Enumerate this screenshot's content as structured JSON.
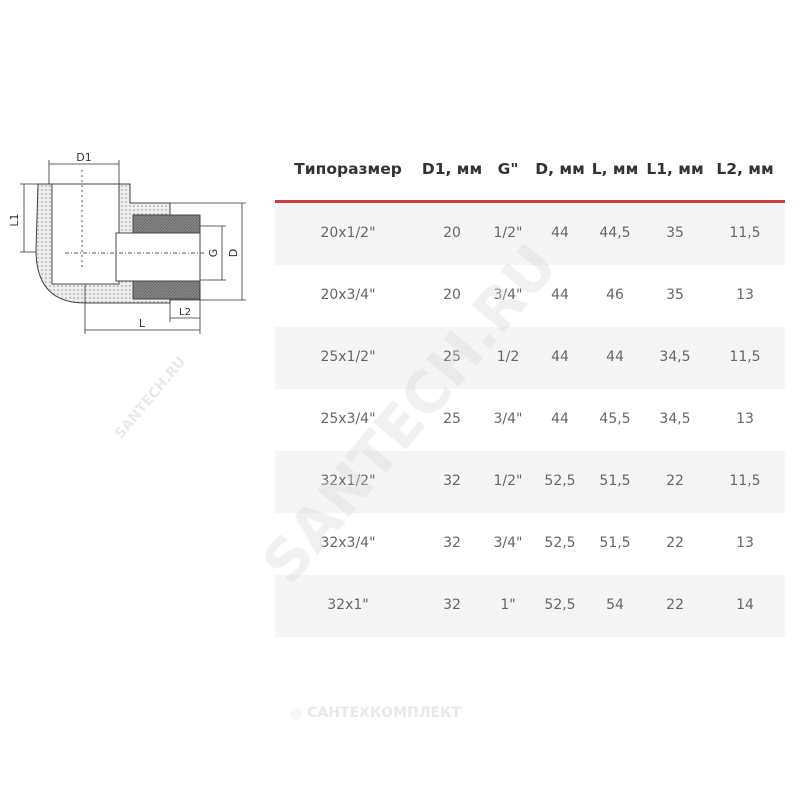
{
  "drawing_labels": {
    "d1": "D1",
    "l1": "L1",
    "g": "G",
    "d": "D",
    "l": "L",
    "l2": "L2"
  },
  "table": {
    "headers": [
      "Типоразмер",
      "D1, мм",
      "G\"",
      "D, мм",
      "L, мм",
      "L1, мм",
      "L2, мм"
    ],
    "rows": [
      [
        "20x1/2\"",
        "20",
        "1/2\"",
        "44",
        "44,5",
        "35",
        "11,5"
      ],
      [
        "20x3/4\"",
        "20",
        "3/4\"",
        "44",
        "46",
        "35",
        "13"
      ],
      [
        "25x1/2\"",
        "25",
        "1/2",
        "44",
        "44",
        "34,5",
        "11,5"
      ],
      [
        "25x3/4\"",
        "25",
        "3/4\"",
        "44",
        "45,5",
        "34,5",
        "13"
      ],
      [
        "32x1/2\"",
        "32",
        "1/2\"",
        "52,5",
        "51,5",
        "22",
        "11,5"
      ],
      [
        "32x3/4\"",
        "32",
        "3/4\"",
        "52,5",
        "51,5",
        "22",
        "13"
      ],
      [
        "32x1\"",
        "32",
        "1\"",
        "52,5",
        "54",
        "22",
        "14"
      ]
    ]
  },
  "watermarks": {
    "diagonal": "SANTECH.RU",
    "small": "SANTECH.RU",
    "bottom": "САНТЕХКОМПЛЕКТ"
  },
  "colors": {
    "accent": "#d0393e"
  }
}
